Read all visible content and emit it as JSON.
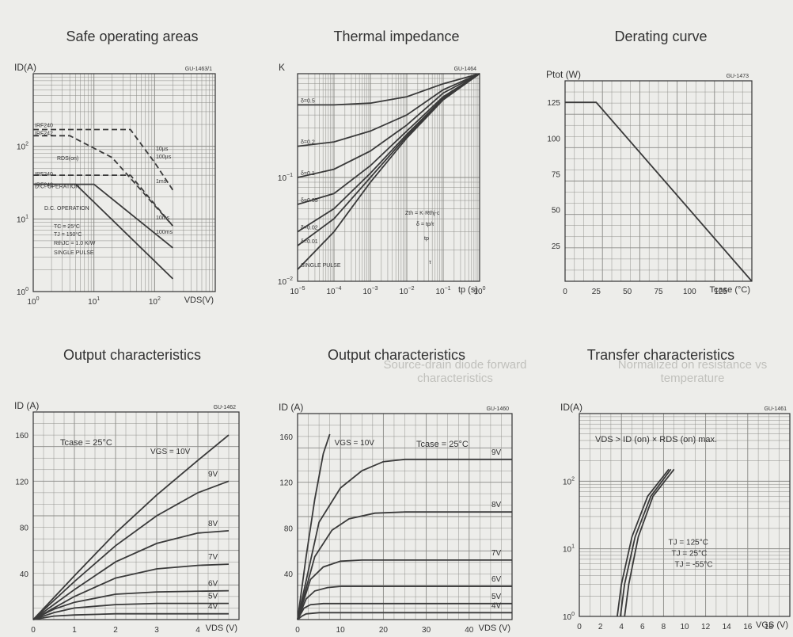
{
  "page": {
    "ghost_titles": [
      "Source-drain diode forward characteristics",
      "Normalized on resistance vs temperature"
    ]
  },
  "chart_data": [
    {
      "type": "line",
      "log_x": true,
      "log_y": true,
      "title": "Safe operating areas",
      "code": "GU-1463/1",
      "ylabel": "ID(A)",
      "xlabel": "VDS(V)",
      "xlim": [
        1,
        1000
      ],
      "ylim": [
        1,
        1000
      ],
      "x_ticks": [
        "10^0",
        "10^1",
        "10^2"
      ],
      "y_ticks": [
        "10^0",
        "10^1",
        "10^2"
      ],
      "series": [
        {
          "name": "IRF240",
          "style": "dashed",
          "x": [
            1,
            5,
            40,
            100,
            200
          ],
          "y": [
            170,
            170,
            170,
            60,
            25
          ]
        },
        {
          "name": "IRF242",
          "style": "dashed",
          "x": [
            1,
            4,
            20,
            200
          ],
          "y": [
            140,
            140,
            70,
            8
          ]
        },
        {
          "name": "IRF240",
          "style": "dashed",
          "x": [
            1,
            40,
            200
          ],
          "y": [
            40,
            40,
            8
          ]
        },
        {
          "name": "IRF242",
          "style": "solid",
          "x": [
            1,
            5,
            200
          ],
          "y": [
            30,
            30,
            1.5
          ]
        },
        {
          "name": "D.C. OPERATION",
          "style": "solid",
          "x": [
            1,
            10,
            200
          ],
          "y": [
            30,
            30,
            4
          ]
        }
      ],
      "annotations": [
        "10µs",
        "100µs",
        "1ms",
        "10ms",
        "100ms",
        "D.C. OPERATION",
        "TC = 25°C",
        "TJ = 150°C",
        "RthJC = 1.0 K/W",
        "SINGLE PULSE",
        "RDS(on)"
      ]
    },
    {
      "type": "line",
      "log_x": true,
      "log_y": true,
      "title": "Thermal impedance",
      "code": "GU-1464",
      "ylabel": "K",
      "xlabel": "tp (s)",
      "xlim": [
        1e-05,
        1
      ],
      "ylim": [
        0.01,
        1
      ],
      "x_ticks": [
        "10^-5",
        "10^-4",
        "10^-3",
        "10^-2",
        "10^-1",
        "10^0"
      ],
      "y_ticks": [
        "10^-2",
        "10^-1"
      ],
      "series": [
        {
          "name": "δ=0.5",
          "x": [
            1e-05,
            0.0001,
            0.001,
            0.01,
            0.1,
            1
          ],
          "y": [
            0.5,
            0.5,
            0.52,
            0.6,
            0.8,
            1
          ]
        },
        {
          "name": "δ=0.2",
          "x": [
            1e-05,
            0.0001,
            0.001,
            0.01,
            0.1,
            1
          ],
          "y": [
            0.2,
            0.22,
            0.28,
            0.4,
            0.7,
            1
          ]
        },
        {
          "name": "δ=0.1",
          "x": [
            1e-05,
            0.0001,
            0.001,
            0.01,
            0.1,
            1
          ],
          "y": [
            0.1,
            0.12,
            0.18,
            0.32,
            0.65,
            1
          ]
        },
        {
          "name": "δ=0.05",
          "x": [
            1e-05,
            0.0001,
            0.001,
            0.01,
            0.1,
            1
          ],
          "y": [
            0.055,
            0.07,
            0.13,
            0.28,
            0.6,
            1
          ]
        },
        {
          "name": "δ=0.02",
          "x": [
            1e-05,
            0.0001,
            0.001,
            0.01,
            0.1,
            1
          ],
          "y": [
            0.03,
            0.05,
            0.11,
            0.26,
            0.58,
            1
          ]
        },
        {
          "name": "δ=0.01",
          "x": [
            1e-05,
            0.0001,
            0.001,
            0.01,
            0.1,
            1
          ],
          "y": [
            0.022,
            0.04,
            0.1,
            0.25,
            0.57,
            1
          ]
        },
        {
          "name": "SINGLE PULSE",
          "x": [
            1e-05,
            0.0001,
            0.001,
            0.01,
            0.1,
            1
          ],
          "y": [
            0.013,
            0.03,
            0.09,
            0.24,
            0.56,
            1
          ]
        }
      ],
      "annotations": [
        "Zth = K·Rthj-c",
        "δ = tp/τ",
        "tp",
        "τ"
      ]
    },
    {
      "type": "line",
      "title": "Derating curve",
      "code": "GU-1473",
      "ylabel": "Ptot (W)",
      "xlabel": "Tcase (°C)",
      "xlim": [
        0,
        150
      ],
      "ylim": [
        0,
        140
      ],
      "x_ticks": [
        0,
        25,
        50,
        75,
        100,
        125
      ],
      "y_ticks": [
        25,
        50,
        75,
        100,
        125
      ],
      "series": [
        {
          "name": "Ptot",
          "x": [
            0,
            25,
            150
          ],
          "y": [
            125,
            125,
            0
          ]
        }
      ]
    },
    {
      "type": "line",
      "title": "Output characteristics",
      "code": "GU-1462",
      "ylabel": "ID (A)",
      "xlabel": "VDS (V)",
      "xlim": [
        0,
        5
      ],
      "ylim": [
        0,
        180
      ],
      "x_ticks": [
        0,
        1,
        2,
        3,
        4
      ],
      "y_ticks": [
        40,
        80,
        120,
        160
      ],
      "annotations": [
        "Tcase = 25°C"
      ],
      "series": [
        {
          "name": "VGS = 10V",
          "x": [
            0,
            1,
            2,
            3,
            4,
            4.75
          ],
          "y": [
            0,
            38,
            75,
            108,
            138,
            160
          ]
        },
        {
          "name": "9V",
          "x": [
            0,
            1,
            2,
            3,
            4,
            4.75
          ],
          "y": [
            0,
            33,
            64,
            90,
            110,
            120
          ]
        },
        {
          "name": "8V",
          "x": [
            0,
            1,
            2,
            3,
            4,
            4.75
          ],
          "y": [
            0,
            26,
            50,
            66,
            75,
            77
          ]
        },
        {
          "name": "7V",
          "x": [
            0,
            1,
            2,
            3,
            4,
            4.75
          ],
          "y": [
            0,
            20,
            36,
            44,
            47,
            48
          ]
        },
        {
          "name": "6V",
          "x": [
            0,
            0.5,
            1,
            2,
            3,
            4.75
          ],
          "y": [
            0,
            9,
            15,
            22,
            24,
            25
          ]
        },
        {
          "name": "5V",
          "x": [
            0,
            0.5,
            1,
            2,
            3,
            4.75
          ],
          "y": [
            0,
            6,
            10,
            13,
            14,
            14
          ]
        },
        {
          "name": "4V",
          "x": [
            0,
            0.5,
            1,
            2,
            4.75
          ],
          "y": [
            0,
            3,
            4,
            5,
            5
          ]
        }
      ]
    },
    {
      "type": "line",
      "title": "Output characteristics",
      "code": "GU-1460",
      "ylabel": "ID (A)",
      "xlabel": "VDS (V)",
      "xlim": [
        0,
        50
      ],
      "ylim": [
        0,
        180
      ],
      "x_ticks": [
        0,
        10,
        20,
        30,
        40
      ],
      "y_ticks": [
        40,
        80,
        120,
        160
      ],
      "annotations": [
        "Tcase = 25°C"
      ],
      "series": [
        {
          "name": "VGS = 10V",
          "x": [
            0,
            2,
            4,
            6,
            7.5
          ],
          "y": [
            0,
            55,
            105,
            145,
            162
          ]
        },
        {
          "name": "9V",
          "x": [
            0,
            5,
            10,
            15,
            20,
            25,
            50
          ],
          "y": [
            0,
            85,
            115,
            130,
            138,
            140,
            140
          ]
        },
        {
          "name": "8V",
          "x": [
            0,
            4,
            8,
            12,
            18,
            25,
            50
          ],
          "y": [
            0,
            55,
            78,
            88,
            93,
            94,
            94
          ]
        },
        {
          "name": "7V",
          "x": [
            0,
            3,
            6,
            10,
            15,
            50
          ],
          "y": [
            0,
            35,
            46,
            51,
            52,
            52
          ]
        },
        {
          "name": "6V",
          "x": [
            0,
            2,
            4,
            7,
            10,
            50
          ],
          "y": [
            0,
            18,
            25,
            28,
            29,
            29
          ]
        },
        {
          "name": "5V",
          "x": [
            0,
            1.5,
            3,
            6,
            50
          ],
          "y": [
            0,
            10,
            13,
            14,
            14
          ]
        },
        {
          "name": "4V",
          "x": [
            0,
            1,
            2,
            5,
            50
          ],
          "y": [
            0,
            3,
            5,
            6,
            6
          ]
        }
      ]
    },
    {
      "type": "line",
      "log_y": true,
      "title": "Transfer characteristics",
      "code": "GU-1461",
      "ylabel": "ID(A)",
      "xlabel": "VGS (V)",
      "xlim": [
        0,
        20
      ],
      "ylim": [
        1,
        1000
      ],
      "x_ticks": [
        0,
        2,
        4,
        6,
        8,
        10,
        12,
        14,
        16,
        18
      ],
      "y_ticks": [
        "10^0",
        "10^1",
        "10^2"
      ],
      "annotations": [
        "VDS > ID (on) × RDS (on) max."
      ],
      "series": [
        {
          "name": "TJ = 125°C",
          "x": [
            3.6,
            4.0,
            5.0,
            6.5,
            8.5
          ],
          "y": [
            1,
            3,
            15,
            60,
            150
          ]
        },
        {
          "name": "TJ = 25°C",
          "x": [
            3.9,
            4.3,
            5.3,
            6.8,
            8.7
          ],
          "y": [
            1,
            3,
            15,
            60,
            150
          ]
        },
        {
          "name": "TJ = -55°C",
          "x": [
            4.3,
            4.7,
            5.6,
            7.0,
            9.0
          ],
          "y": [
            1,
            3,
            15,
            60,
            150
          ]
        }
      ]
    }
  ]
}
